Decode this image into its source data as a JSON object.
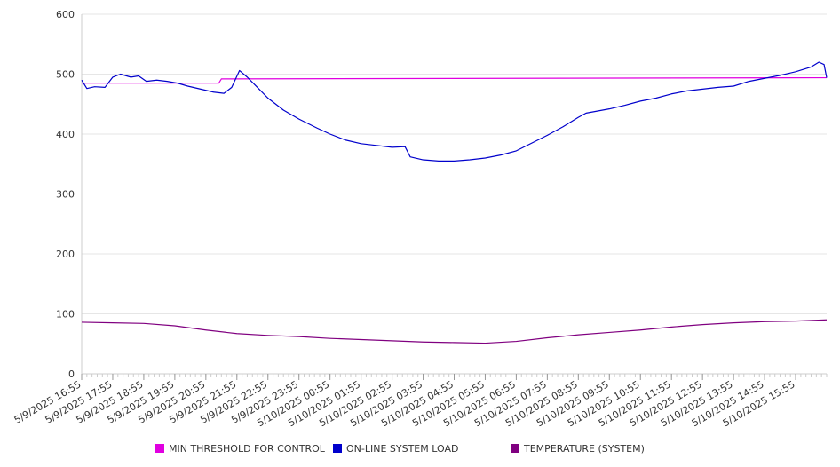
{
  "chart_data": {
    "type": "line",
    "title": "",
    "xlabel": "",
    "ylabel": "",
    "ylim": [
      0,
      600
    ],
    "yticks": [
      0,
      100,
      200,
      300,
      400,
      500,
      600
    ],
    "xlim": [
      "5/9/2025 16:55",
      "5/10/2025 16:55"
    ],
    "x_tick_labels": [
      "5/9/2025 16:55",
      "5/9/2025 17:55",
      "5/9/2025 18:55",
      "5/9/2025 19:55",
      "5/9/2025 20:55",
      "5/9/2025 21:55",
      "5/9/2025 22:55",
      "5/9/2025 23:55",
      "5/10/2025 00:55",
      "5/10/2025 01:55",
      "5/10/2025 02:55",
      "5/10/2025 03:55",
      "5/10/2025 04:55",
      "5/10/2025 05:55",
      "5/10/2025 06:55",
      "5/10/2025 07:55",
      "5/10/2025 08:55",
      "5/10/2025 09:55",
      "5/10/2025 10:55",
      "5/10/2025 11:55",
      "5/10/2025 12:55",
      "5/10/2025 13:55",
      "5/10/2025 14:55",
      "5/10/2025 15:55"
    ],
    "grid": "horizontal",
    "legend_position": "bottom",
    "series": [
      {
        "name": "MIN THRESHOLD FOR CONTROL",
        "color": "#e000e0",
        "points": [
          [
            "5/9/2025 16:55",
            485
          ],
          [
            "5/9/2025 21:20",
            485
          ],
          [
            "5/9/2025 21:25",
            492
          ],
          [
            "5/10/2025 16:55",
            494
          ]
        ]
      },
      {
        "name": "ON-LINE SYSTEM LOAD",
        "color": "#0000cc",
        "points": [
          [
            "5/9/2025 16:55",
            490
          ],
          [
            "5/9/2025 17:05",
            476
          ],
          [
            "5/9/2025 17:20",
            479
          ],
          [
            "5/9/2025 17:40",
            478
          ],
          [
            "5/9/2025 17:55",
            495
          ],
          [
            "5/9/2025 18:10",
            500
          ],
          [
            "5/9/2025 18:30",
            495
          ],
          [
            "5/9/2025 18:45",
            497
          ],
          [
            "5/9/2025 19:00",
            488
          ],
          [
            "5/9/2025 19:20",
            490
          ],
          [
            "5/9/2025 19:40",
            488
          ],
          [
            "5/9/2025 20:00",
            485
          ],
          [
            "5/9/2025 20:20",
            480
          ],
          [
            "5/9/2025 20:45",
            475
          ],
          [
            "5/9/2025 21:10",
            470
          ],
          [
            "5/9/2025 21:30",
            468
          ],
          [
            "5/9/2025 21:45",
            478
          ],
          [
            "5/9/2025 22:00",
            506
          ],
          [
            "5/9/2025 22:15",
            495
          ],
          [
            "5/9/2025 22:30",
            482
          ],
          [
            "5/9/2025 22:55",
            460
          ],
          [
            "5/9/2025 23:25",
            440
          ],
          [
            "5/9/2025 23:55",
            425
          ],
          [
            "5/10/2025 00:30",
            410
          ],
          [
            "5/10/2025 00:55",
            400
          ],
          [
            "5/10/2025 01:25",
            390
          ],
          [
            "5/10/2025 01:55",
            384
          ],
          [
            "5/10/2025 02:25",
            381
          ],
          [
            "5/10/2025 02:55",
            378
          ],
          [
            "5/10/2025 03:20",
            379
          ],
          [
            "5/10/2025 03:30",
            362
          ],
          [
            "5/10/2025 03:55",
            357
          ],
          [
            "5/10/2025 04:25",
            355
          ],
          [
            "5/10/2025 04:55",
            355
          ],
          [
            "5/10/2025 05:25",
            357
          ],
          [
            "5/10/2025 05:55",
            360
          ],
          [
            "5/10/2025 06:25",
            365
          ],
          [
            "5/10/2025 06:55",
            372
          ],
          [
            "5/10/2025 07:25",
            385
          ],
          [
            "5/10/2025 07:55",
            398
          ],
          [
            "5/10/2025 08:25",
            412
          ],
          [
            "5/10/2025 08:55",
            428
          ],
          [
            "5/10/2025 09:10",
            435
          ],
          [
            "5/10/2025 09:55",
            442
          ],
          [
            "5/10/2025 10:25",
            448
          ],
          [
            "5/10/2025 10:55",
            455
          ],
          [
            "5/10/2025 11:25",
            460
          ],
          [
            "5/10/2025 11:55",
            467
          ],
          [
            "5/10/2025 12:25",
            472
          ],
          [
            "5/10/2025 12:55",
            475
          ],
          [
            "5/10/2025 13:25",
            478
          ],
          [
            "5/10/2025 13:55",
            480
          ],
          [
            "5/10/2025 14:25",
            488
          ],
          [
            "5/10/2025 14:55",
            493
          ],
          [
            "5/10/2025 15:25",
            498
          ],
          [
            "5/10/2025 15:55",
            504
          ],
          [
            "5/10/2025 16:25",
            512
          ],
          [
            "5/10/2025 16:40",
            520
          ],
          [
            "5/10/2025 16:50",
            516
          ],
          [
            "5/10/2025 16:55",
            494
          ]
        ]
      },
      {
        "name": "TEMPERATURE (SYSTEM)",
        "color": "#800080",
        "points": [
          [
            "5/9/2025 16:55",
            86
          ],
          [
            "5/9/2025 17:55",
            85
          ],
          [
            "5/9/2025 18:55",
            84
          ],
          [
            "5/9/2025 19:55",
            80
          ],
          [
            "5/9/2025 20:55",
            73
          ],
          [
            "5/9/2025 21:55",
            67
          ],
          [
            "5/9/2025 22:55",
            64
          ],
          [
            "5/9/2025 23:55",
            62
          ],
          [
            "5/10/2025 00:55",
            59
          ],
          [
            "5/10/2025 01:55",
            57
          ],
          [
            "5/10/2025 02:55",
            55
          ],
          [
            "5/10/2025 03:55",
            53
          ],
          [
            "5/10/2025 04:55",
            52
          ],
          [
            "5/10/2025 05:55",
            51
          ],
          [
            "5/10/2025 06:55",
            54
          ],
          [
            "5/10/2025 07:55",
            60
          ],
          [
            "5/10/2025 08:55",
            65
          ],
          [
            "5/10/2025 09:55",
            69
          ],
          [
            "5/10/2025 10:55",
            73
          ],
          [
            "5/10/2025 11:55",
            78
          ],
          [
            "5/10/2025 12:55",
            82
          ],
          [
            "5/10/2025 13:55",
            85
          ],
          [
            "5/10/2025 14:55",
            87
          ],
          [
            "5/10/2025 15:55",
            88
          ],
          [
            "5/10/2025 16:55",
            90
          ]
        ]
      }
    ]
  }
}
